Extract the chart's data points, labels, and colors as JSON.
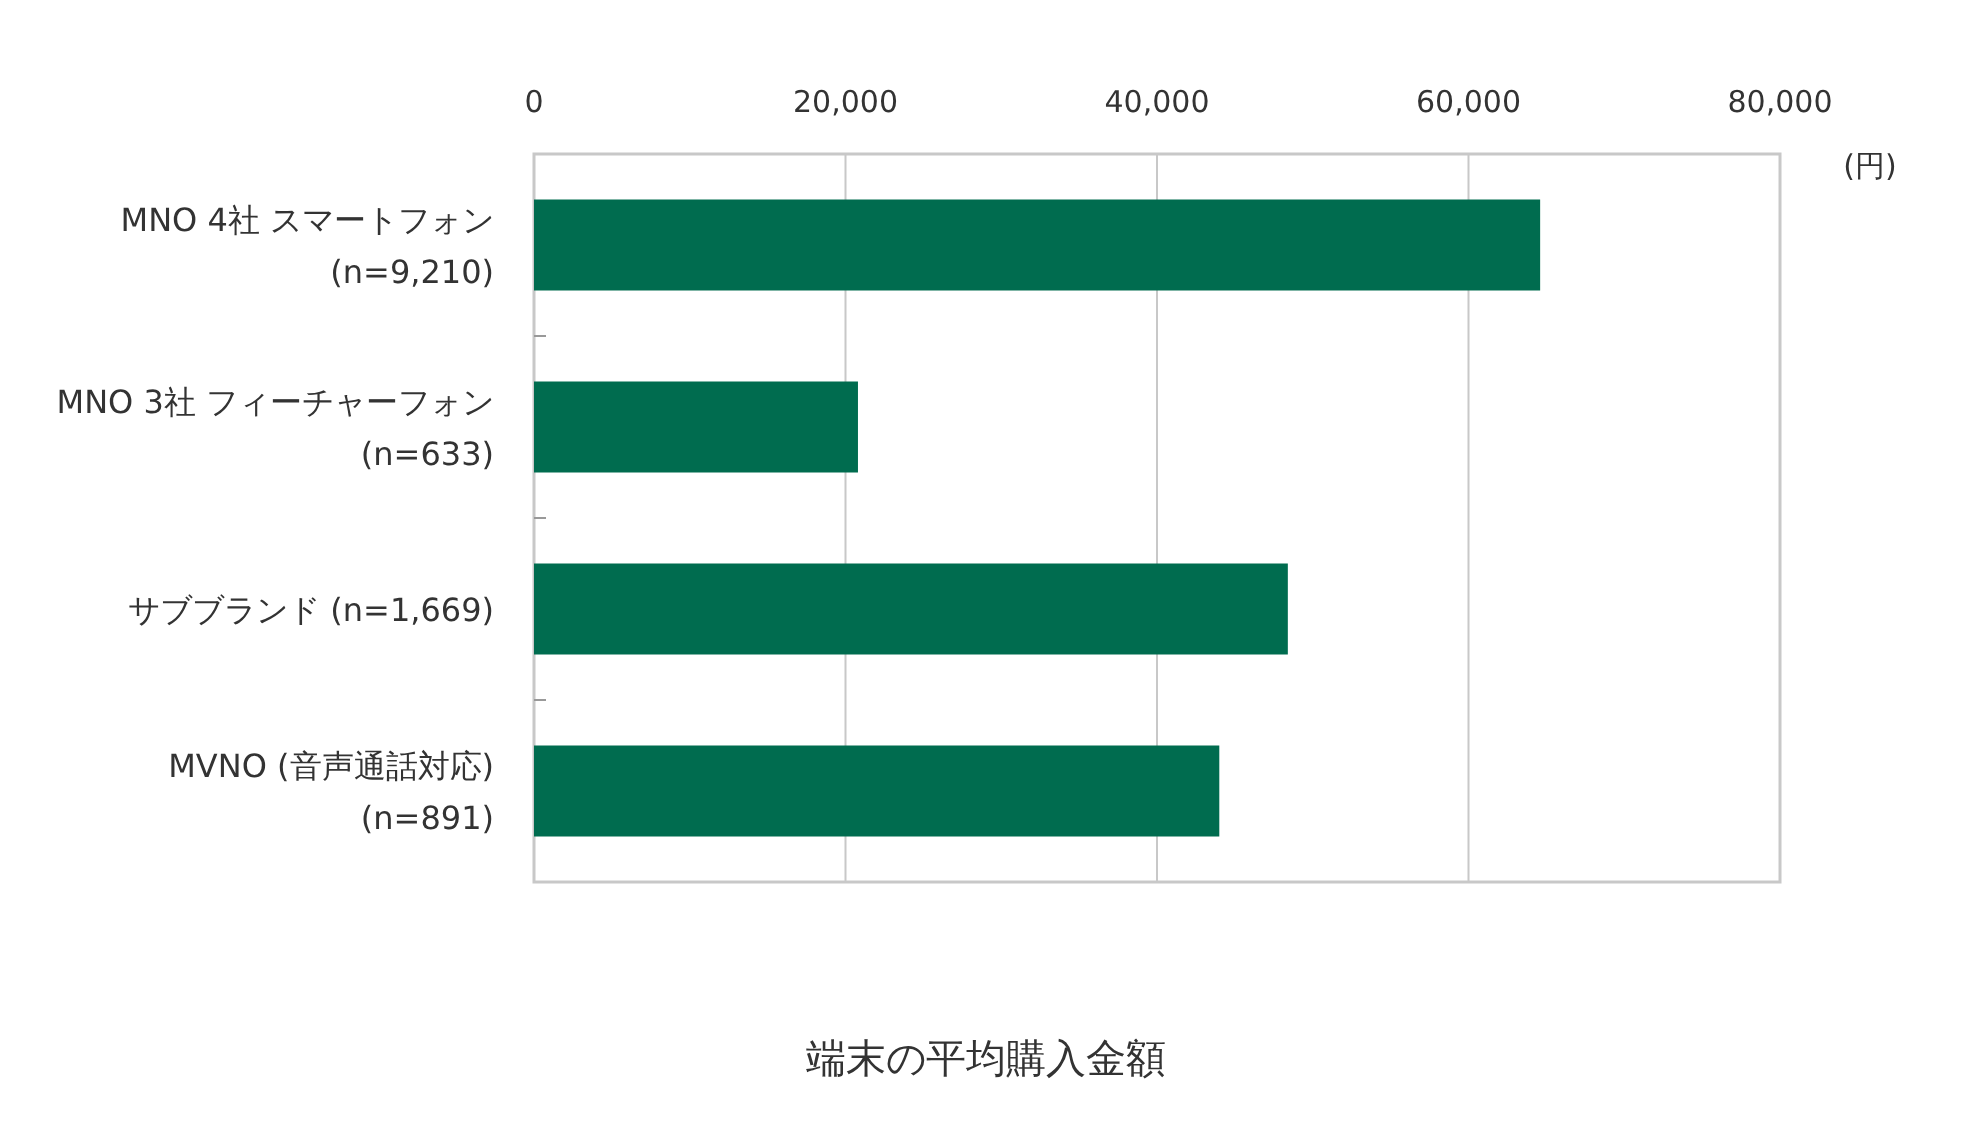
{
  "chart_data": {
    "type": "bar",
    "orientation": "horizontal",
    "title": "端末の平均購入金額",
    "xlabel": "(円)",
    "categories": [
      "MNO 4社 スマートフォン\n(n=9,210)",
      "MNO 3社 フィーチャーフォン\n(n=633)",
      "サブブランド (n=1,669)",
      "MVNO (音声通話対応)\n(n=891)"
    ],
    "values": [
      64600,
      20800,
      48400,
      44000
    ],
    "color": "#006c4f",
    "xlim": [
      0,
      80000
    ],
    "xticks": [
      {
        "value": 0,
        "label": "0"
      },
      {
        "value": 20000,
        "label": "20,000"
      },
      {
        "value": 40000,
        "label": "40,000"
      },
      {
        "value": 60000,
        "label": "60,000"
      },
      {
        "value": 80000,
        "label": "80,000"
      }
    ],
    "grid": "x"
  }
}
